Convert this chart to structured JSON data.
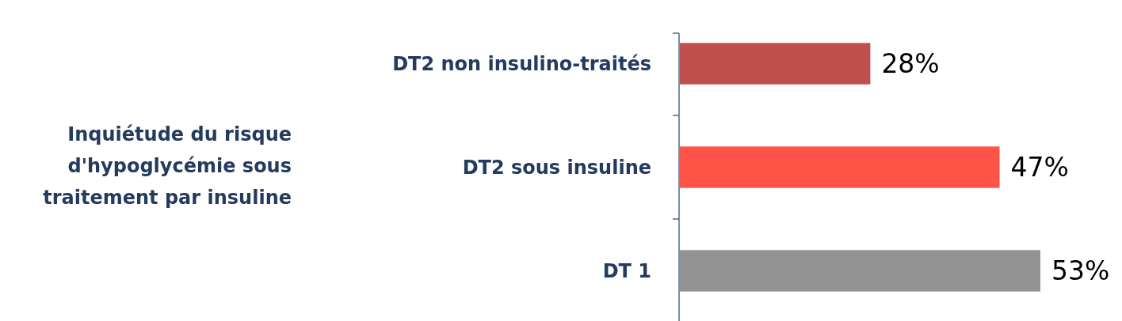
{
  "chart_data": {
    "type": "bar",
    "orientation": "horizontal",
    "annotations": [
      "Inquiétude du risque d'hypoglycémie sous traitement par insuline"
    ],
    "categories": [
      "DT2 non insulino-traités",
      "DT2 sous insuline",
      "DT 1"
    ],
    "values": [
      28,
      47,
      53
    ],
    "colors": [
      "#c0504d",
      "#ff5347",
      "#939393"
    ],
    "value_labels": [
      "28%",
      "47%",
      "53%"
    ]
  }
}
